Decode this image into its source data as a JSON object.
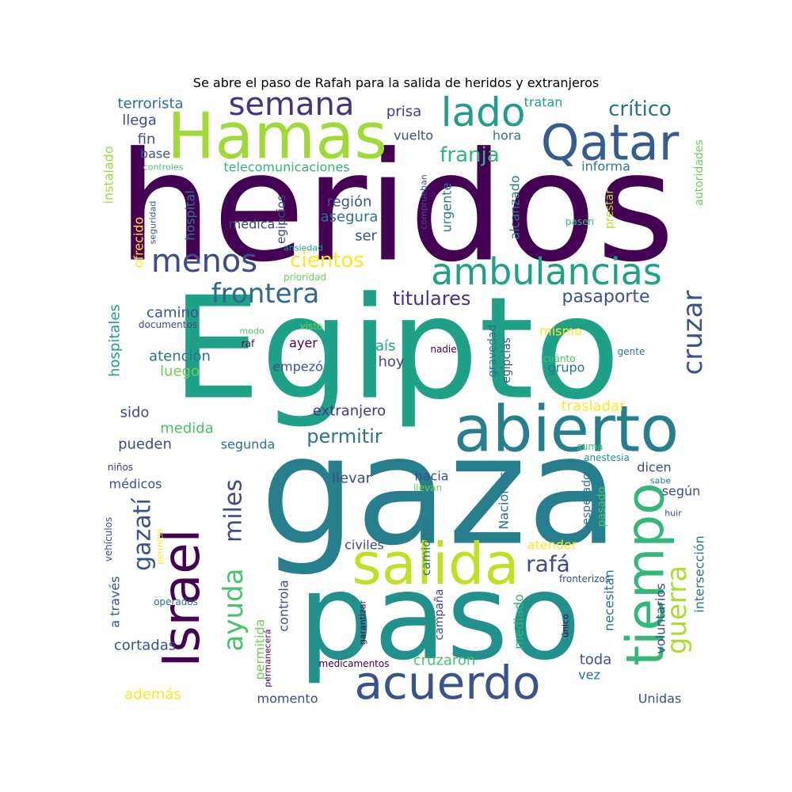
{
  "title": "Se abre el paso de Rafah para la salida de heridos y extranjeros",
  "palette": [
    "#440154",
    "#46327e",
    "#365c8d",
    "#277f8e",
    "#1fa187",
    "#4ac16d",
    "#a0da39",
    "#fde725"
  ],
  "words": [
    {
      "text": "heridos",
      "color": "#440154",
      "vertical": false
    },
    {
      "text": "Egipto",
      "color": "#1fa187",
      "vertical": false
    },
    {
      "text": "gaza",
      "color": "#277f8e",
      "vertical": false
    },
    {
      "text": "paso",
      "color": "#21918c",
      "vertical": false
    },
    {
      "text": "Hamas",
      "color": "#a0da39",
      "vertical": false
    },
    {
      "text": "Qatar",
      "color": "#365c8d",
      "vertical": false
    },
    {
      "text": "abierto",
      "color": "#277f8e",
      "vertical": false
    },
    {
      "text": "tiempo",
      "color": "#35b779",
      "vertical": true
    },
    {
      "text": "Israel",
      "color": "#440154",
      "vertical": true
    },
    {
      "text": "salida",
      "color": "#c2df23",
      "vertical": false
    },
    {
      "text": "acuerdo",
      "color": "#3b528b",
      "vertical": false
    },
    {
      "text": "ambulancias",
      "color": "#1fa187",
      "vertical": false
    },
    {
      "text": "semana",
      "color": "#46327e",
      "vertical": false
    },
    {
      "text": "lado",
      "color": "#1f9e89",
      "vertical": false
    },
    {
      "text": "menos",
      "color": "#3e4a89",
      "vertical": false
    },
    {
      "text": "frontera",
      "color": "#31688e",
      "vertical": false
    },
    {
      "text": "cruzar",
      "color": "#3b528b",
      "vertical": true
    },
    {
      "text": "ayuda",
      "color": "#4ac16d",
      "vertical": true
    },
    {
      "text": "gazatí",
      "color": "#3b528b",
      "vertical": true
    },
    {
      "text": "miles",
      "color": "#3e4a89",
      "vertical": true
    },
    {
      "text": "guerra",
      "color": "#addc30",
      "vertical": true
    },
    {
      "text": "crítico",
      "color": "#2c728e",
      "vertical": false
    },
    {
      "text": "franja",
      "color": "#31b57b",
      "vertical": false
    },
    {
      "text": "cientos",
      "color": "#fde725",
      "vertical": false
    },
    {
      "text": "titulares",
      "color": "#46327e",
      "vertical": false
    },
    {
      "text": "permitir",
      "color": "#2c728e",
      "vertical": false
    },
    {
      "text": "pasaporte",
      "color": "#3b528b",
      "vertical": false
    },
    {
      "text": "rafá",
      "color": "#3e4a89",
      "vertical": false
    },
    {
      "text": "terrorista",
      "color": "#2c728e",
      "vertical": false
    },
    {
      "text": "llega",
      "color": "#3e4a89",
      "vertical": false
    },
    {
      "text": "fin",
      "color": "#3b528b",
      "vertical": false
    },
    {
      "text": "base",
      "color": "#3b528b",
      "vertical": false
    },
    {
      "text": "controles",
      "color": "#4ac16d",
      "vertical": false
    },
    {
      "text": "telecomunicaciones",
      "color": "#31b57b",
      "vertical": false
    },
    {
      "text": "prisa",
      "color": "#443983",
      "vertical": false
    },
    {
      "text": "tratan",
      "color": "#1f9e89",
      "vertical": false
    },
    {
      "text": "vuelto",
      "color": "#3e4a89",
      "vertical": false
    },
    {
      "text": "hora",
      "color": "#2a788e",
      "vertical": false
    },
    {
      "text": "informa",
      "color": "#2a788e",
      "vertical": false
    },
    {
      "text": "autoridades",
      "color": "#6ece58",
      "vertical": true
    },
    {
      "text": "instalado",
      "color": "#a0da39",
      "vertical": true
    },
    {
      "text": "seguridad",
      "color": "#3b528b",
      "vertical": true
    },
    {
      "text": "hospital",
      "color": "#2c728e",
      "vertical": true
    },
    {
      "text": "ofrecido",
      "color": "#fde725",
      "vertical": true
    },
    {
      "text": "región",
      "color": "#3b528b",
      "vertical": false
    },
    {
      "text": "asegura",
      "color": "#2c728e",
      "vertical": false
    },
    {
      "text": "médica",
      "color": "#414487",
      "vertical": false
    },
    {
      "text": "egipcios",
      "color": "#414487",
      "vertical": true
    },
    {
      "text": "ser",
      "color": "#3b528b",
      "vertical": false
    },
    {
      "text": "ansiedad",
      "color": "#1fa187",
      "vertical": false
    },
    {
      "text": "prioridad",
      "color": "#6ece58",
      "vertical": false
    },
    {
      "text": "urgente",
      "color": "#2a788e",
      "vertical": true
    },
    {
      "text": "comprueban",
      "color": "#3b528b",
      "vertical": true
    },
    {
      "text": "alcanzado",
      "color": "#2a788e",
      "vertical": true
    },
    {
      "text": "prestar",
      "color": "#b5de2b",
      "vertical": true
    },
    {
      "text": "pasen",
      "color": "#35b779",
      "vertical": false
    },
    {
      "text": "camino",
      "color": "#3b528b",
      "vertical": false
    },
    {
      "text": "documentos",
      "color": "#3e4a89",
      "vertical": false
    },
    {
      "text": "modo",
      "color": "#4ac16d",
      "vertical": false
    },
    {
      "text": "raf",
      "color": "#440154",
      "vertical": false
    },
    {
      "text": "visto",
      "color": "#6ece58",
      "vertical": false
    },
    {
      "text": "mismo",
      "color": "#fde725",
      "vertical": false
    },
    {
      "text": "hospitales",
      "color": "#1f9e89",
      "vertical": true
    },
    {
      "text": "atención",
      "color": "#2c728e",
      "vertical": false
    },
    {
      "text": "luego",
      "color": "#6ece58",
      "vertical": false
    },
    {
      "text": "ayer",
      "color": "#440154",
      "vertical": false
    },
    {
      "text": "empezó",
      "color": "#3b528b",
      "vertical": false
    },
    {
      "text": "país",
      "color": "#1f9e89",
      "vertical": false
    },
    {
      "text": "hoy",
      "color": "#3e4a89",
      "vertical": false
    },
    {
      "text": "nadie",
      "color": "#440154",
      "vertical": false
    },
    {
      "text": "gravedad",
      "color": "#2c728e",
      "vertical": true
    },
    {
      "text": "egipcias",
      "color": "#3b528b",
      "vertical": true
    },
    {
      "text": "cuánto",
      "color": "#4ac16d",
      "vertical": false
    },
    {
      "text": "grupo",
      "color": "#2a788e",
      "vertical": false
    },
    {
      "text": "gente",
      "color": "#2a788e",
      "vertical": false
    },
    {
      "text": "sido",
      "color": "#3e4a89",
      "vertical": false
    },
    {
      "text": "extranjero",
      "color": "#443983",
      "vertical": false
    },
    {
      "text": "trasladar",
      "color": "#fde725",
      "vertical": false
    },
    {
      "text": "medida",
      "color": "#4ac16d",
      "vertical": false
    },
    {
      "text": "pueden",
      "color": "#3e4a89",
      "vertical": false
    },
    {
      "text": "segunda",
      "color": "#2c728e",
      "vertical": false
    },
    {
      "text": "suma",
      "color": "#4ac16d",
      "vertical": false
    },
    {
      "text": "anestesia",
      "color": "#21918c",
      "vertical": false
    },
    {
      "text": "dicen",
      "color": "#3e4a89",
      "vertical": false
    },
    {
      "text": "niños",
      "color": "#443983",
      "vertical": false
    },
    {
      "text": "médicos",
      "color": "#3b528b",
      "vertical": false
    },
    {
      "text": "llevar",
      "color": "#3e4a89",
      "vertical": false
    },
    {
      "text": "hacia",
      "color": "#3e4a89",
      "vertical": false
    },
    {
      "text": "llevan",
      "color": "#6ece58",
      "vertical": false
    },
    {
      "text": "Naciones",
      "color": "#2c728e",
      "vertical": true
    },
    {
      "text": "esperado",
      "color": "#2c728e",
      "vertical": true
    },
    {
      "text": "pasado",
      "color": "#4ac16d",
      "vertical": true
    },
    {
      "text": "sabe",
      "color": "#2a788e",
      "vertical": false
    },
    {
      "text": "según",
      "color": "#3e4a89",
      "vertical": false
    },
    {
      "text": "huir",
      "color": "#3e4a89",
      "vertical": false
    },
    {
      "text": "vehículos",
      "color": "#3b528b",
      "vertical": true
    },
    {
      "text": "permitió",
      "color": "#fde725",
      "vertical": true
    },
    {
      "text": "camiones",
      "color": "#2c728e",
      "vertical": true
    },
    {
      "text": "civiles",
      "color": "#3e4a89",
      "vertical": false
    },
    {
      "text": "atender",
      "color": "#fde725",
      "vertical": false
    },
    {
      "text": "intersección",
      "color": "#2c728e",
      "vertical": true
    },
    {
      "text": "a través",
      "color": "#3b528b",
      "vertical": true
    },
    {
      "text": "operados",
      "color": "#2c728e",
      "vertical": false
    },
    {
      "text": "controla",
      "color": "#3e4a89",
      "vertical": true
    },
    {
      "text": "garantizar",
      "color": "#440154",
      "vertical": true
    },
    {
      "text": "campaña",
      "color": "#414487",
      "vertical": true
    },
    {
      "text": "mediado",
      "color": "#31b57b",
      "vertical": true
    },
    {
      "text": "fronterizos",
      "color": "#3e4a89",
      "vertical": false
    },
    {
      "text": "necesitan",
      "color": "#2c728e",
      "vertical": true
    },
    {
      "text": "único",
      "color": "#440154",
      "vertical": true
    },
    {
      "text": "voluntarios",
      "color": "#3e4a89",
      "vertical": true
    },
    {
      "text": "cortadas",
      "color": "#3b528b",
      "vertical": false
    },
    {
      "text": "permitida",
      "color": "#6ece58",
      "vertical": true
    },
    {
      "text": "permanecerá",
      "color": "#440154",
      "vertical": true
    },
    {
      "text": "medicamentos",
      "color": "#440154",
      "vertical": false
    },
    {
      "text": "cruzaron",
      "color": "#4ac16d",
      "vertical": false
    },
    {
      "text": "toda",
      "color": "#3b528b",
      "vertical": false
    },
    {
      "text": "vez",
      "color": "#2c728e",
      "vertical": false
    },
    {
      "text": "además",
      "color": "#fde725",
      "vertical": false
    },
    {
      "text": "momento",
      "color": "#3e4a89",
      "vertical": false
    },
    {
      "text": "Unidas",
      "color": "#3b528b",
      "vertical": false
    }
  ]
}
